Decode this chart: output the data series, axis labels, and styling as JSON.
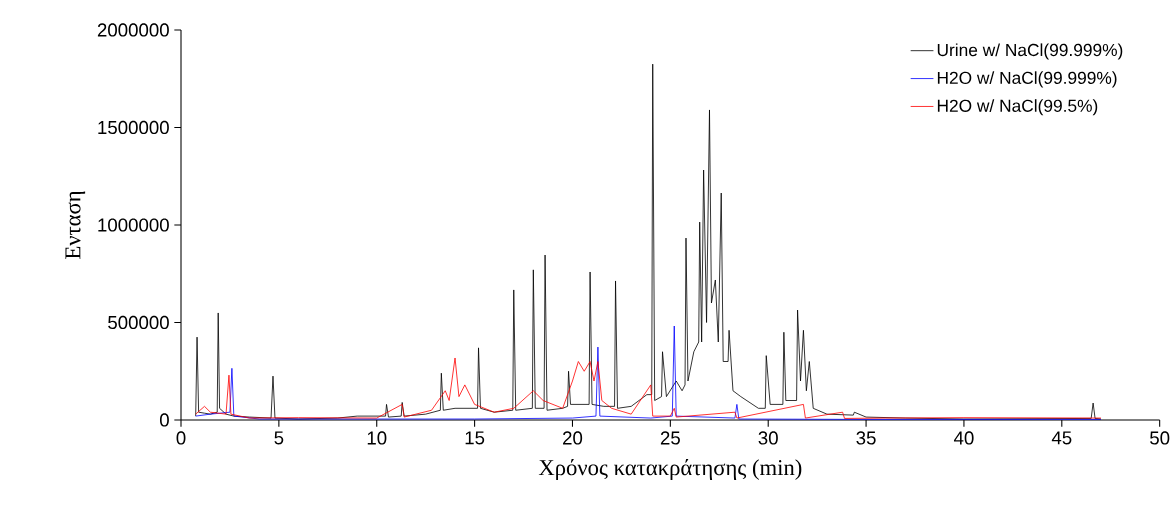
{
  "chart_data": {
    "type": "line",
    "xlabel": "Χρόνος κατακράτησης (min)",
    "ylabel": "Ενταση",
    "xlim": [
      0,
      50
    ],
    "xticks": [
      0,
      5,
      10,
      15,
      20,
      25,
      30,
      35,
      40,
      45,
      50
    ],
    "ylim": [
      0,
      2000000
    ],
    "yticks": [
      0,
      500000,
      1000000,
      1500000,
      2000000
    ],
    "grid": false,
    "legend": "top right",
    "marker": "none",
    "line_style": "solid",
    "series": [
      {
        "name": "Urine w/ NaCl(99.999%)",
        "color": "#000000",
        "x": [
          0.75,
          0.82,
          0.9,
          1.2,
          1.5,
          1.85,
          1.9,
          1.97,
          2.3,
          2.7,
          3.5,
          4.6,
          4.7,
          4.8,
          6,
          8,
          9,
          10.45,
          10.5,
          10.6,
          11.25,
          11.3,
          11.4,
          12.5,
          13.25,
          13.3,
          13.4,
          14,
          15.15,
          15.2,
          15.3,
          16,
          16.95,
          17,
          17.1,
          17.95,
          18,
          18.1,
          18.55,
          18.6,
          18.7,
          19.5,
          19.75,
          19.8,
          19.9,
          20.3,
          20.85,
          20.9,
          21,
          21.6,
          22.15,
          22.2,
          22.3,
          23,
          23.8,
          24.05,
          24.1,
          24.2,
          24.55,
          24.6,
          24.8,
          25.3,
          25.6,
          25.75,
          25.8,
          25.9,
          26.2,
          26.45,
          26.5,
          26.6,
          26.7,
          26.85,
          27,
          27.1,
          27.3,
          27.45,
          27.6,
          27.7,
          27.95,
          28,
          28.2,
          28.6,
          29.5,
          29.85,
          29.9,
          30.1,
          30.75,
          30.8,
          30.9,
          31.45,
          31.5,
          31.65,
          31.8,
          31.95,
          32.1,
          32.3,
          33,
          34.35,
          34.4,
          35,
          37,
          40,
          46.5,
          46.6,
          46.7,
          47
        ],
        "values": [
          20000,
          425000,
          40000,
          35000,
          30000,
          40000,
          549000,
          60000,
          30000,
          20000,
          15000,
          10000,
          225000,
          10000,
          5000,
          10000,
          20000,
          20000,
          80000,
          15000,
          20000,
          90000,
          20000,
          30000,
          50000,
          240000,
          50000,
          60000,
          60000,
          370000,
          60000,
          40000,
          50000,
          667000,
          50000,
          60000,
          770000,
          60000,
          60000,
          846000,
          50000,
          60000,
          70000,
          250000,
          80000,
          80000,
          80000,
          759000,
          80000,
          70000,
          70000,
          713000,
          60000,
          70000,
          130000,
          130000,
          1825000,
          100000,
          120000,
          350000,
          120000,
          200000,
          150000,
          180000,
          933000,
          200000,
          350000,
          400000,
          1015000,
          400000,
          1282000,
          500000,
          1590000,
          600000,
          718000,
          400000,
          1164000,
          300000,
          300000,
          460000,
          150000,
          120000,
          60000,
          60000,
          330000,
          80000,
          80000,
          450000,
          100000,
          100000,
          564000,
          200000,
          460000,
          150000,
          300000,
          60000,
          30000,
          25000,
          40000,
          15000,
          10000,
          5000,
          8000,
          87000,
          8000,
          5000
        ]
      },
      {
        "name": "H2O w/ NaCl(99.999%)",
        "color": "#0000ff",
        "x": [
          0.75,
          1.5,
          2.5,
          2.6,
          2.7,
          4,
          10,
          15,
          20,
          21.2,
          21.3,
          21.4,
          24,
          25.1,
          25.2,
          25.3,
          28.3,
          28.4,
          28.5,
          35,
          47
        ],
        "values": [
          20000,
          30000,
          40000,
          265000,
          20000,
          5000,
          5000,
          5000,
          10000,
          20000,
          374000,
          20000,
          10000,
          20000,
          482000,
          20000,
          10000,
          80000,
          5000,
          3000,
          3000
        ]
      },
      {
        "name": "H2O w/ NaCl(99.5%)",
        "color": "#ff0000",
        "x": [
          0.75,
          1.2,
          1.5,
          2.3,
          2.45,
          2.55,
          3.5,
          6,
          10,
          11.3,
          11.4,
          12.8,
          13.5,
          13.7,
          14,
          14.2,
          14.5,
          15,
          16,
          17,
          18,
          18.5,
          19.5,
          20,
          20.3,
          20.6,
          20.9,
          21.1,
          21.3,
          21.5,
          22,
          23,
          24,
          24.1,
          25,
          25.2,
          25.3,
          28.3,
          28.4,
          31.8,
          31.9,
          33.8,
          33.9,
          36,
          40,
          47
        ],
        "values": [
          30000,
          70000,
          40000,
          30000,
          230000,
          30000,
          10000,
          12000,
          10000,
          80000,
          15000,
          50000,
          150000,
          100000,
          318000,
          120000,
          180000,
          80000,
          40000,
          60000,
          150000,
          100000,
          60000,
          200000,
          300000,
          250000,
          300000,
          200000,
          300000,
          100000,
          60000,
          30000,
          180000,
          20000,
          20000,
          60000,
          15000,
          40000,
          10000,
          80000,
          10000,
          40000,
          8000,
          10000,
          12000,
          10000
        ]
      }
    ]
  }
}
